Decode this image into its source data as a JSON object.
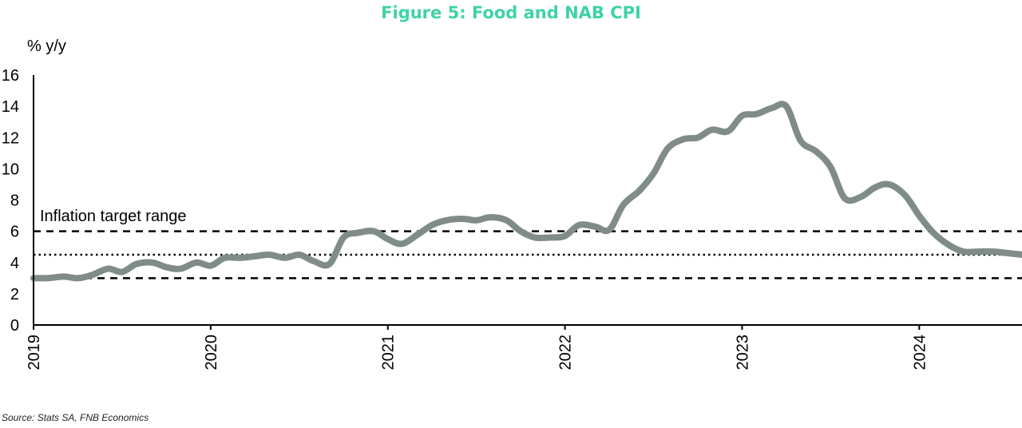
{
  "title": "Figure 5: Food and NAB CPI",
  "title_color": "#3fd3a6",
  "source": "Source: Stats SA, FNB Economics",
  "chart_data": {
    "type": "line",
    "ylabel": "% y/y",
    "ylim": [
      0,
      16
    ],
    "yticks": [
      0,
      2,
      4,
      6,
      8,
      10,
      12,
      14,
      16
    ],
    "xlim": [
      2019.0,
      2024.58
    ],
    "xticks": [
      "2019",
      "2020",
      "2021",
      "2022",
      "2023",
      "2024"
    ],
    "grid": false,
    "series": [
      {
        "color": "#7f8c89",
        "x": [
          2019.0,
          2019.08,
          2019.17,
          2019.25,
          2019.33,
          2019.42,
          2019.5,
          2019.58,
          2019.67,
          2019.75,
          2019.83,
          2019.92,
          2020.0,
          2020.08,
          2020.17,
          2020.25,
          2020.33,
          2020.42,
          2020.5,
          2020.58,
          2020.67,
          2020.75,
          2020.83,
          2020.92,
          2021.0,
          2021.08,
          2021.17,
          2021.25,
          2021.33,
          2021.42,
          2021.5,
          2021.58,
          2021.67,
          2021.75,
          2021.83,
          2021.92,
          2022.0,
          2022.08,
          2022.17,
          2022.25,
          2022.33,
          2022.42,
          2022.5,
          2022.58,
          2022.67,
          2022.75,
          2022.83,
          2022.92,
          2023.0,
          2023.08,
          2023.17,
          2023.25,
          2023.33,
          2023.42,
          2023.5,
          2023.58,
          2023.67,
          2023.75,
          2023.83,
          2023.92,
          2024.0,
          2024.08,
          2024.17,
          2024.25,
          2024.33,
          2024.42,
          2024.5,
          2024.58
        ],
        "values": [
          3.0,
          3.0,
          3.1,
          3.0,
          3.2,
          3.6,
          3.4,
          3.9,
          4.0,
          3.7,
          3.6,
          4.0,
          3.8,
          4.3,
          4.3,
          4.4,
          4.5,
          4.3,
          4.5,
          4.1,
          3.9,
          5.6,
          5.9,
          6.0,
          5.5,
          5.2,
          5.8,
          6.4,
          6.7,
          6.8,
          6.7,
          6.9,
          6.7,
          6.0,
          5.6,
          5.6,
          5.7,
          6.4,
          6.3,
          6.1,
          7.7,
          8.6,
          9.7,
          11.3,
          11.9,
          12.0,
          12.5,
          12.4,
          13.4,
          13.5,
          13.9,
          14.0,
          11.8,
          11.1,
          10.1,
          8.1,
          8.2,
          8.8,
          9.0,
          8.3,
          7.0,
          5.9,
          5.1,
          4.7,
          4.7,
          4.7,
          4.6,
          4.5
        ]
      }
    ],
    "reference_lines": [
      {
        "value": 6,
        "style": "dashed"
      },
      {
        "value": 4.5,
        "style": "dotted"
      },
      {
        "value": 3,
        "style": "dashed"
      }
    ],
    "annotation": "Inflation target range"
  }
}
